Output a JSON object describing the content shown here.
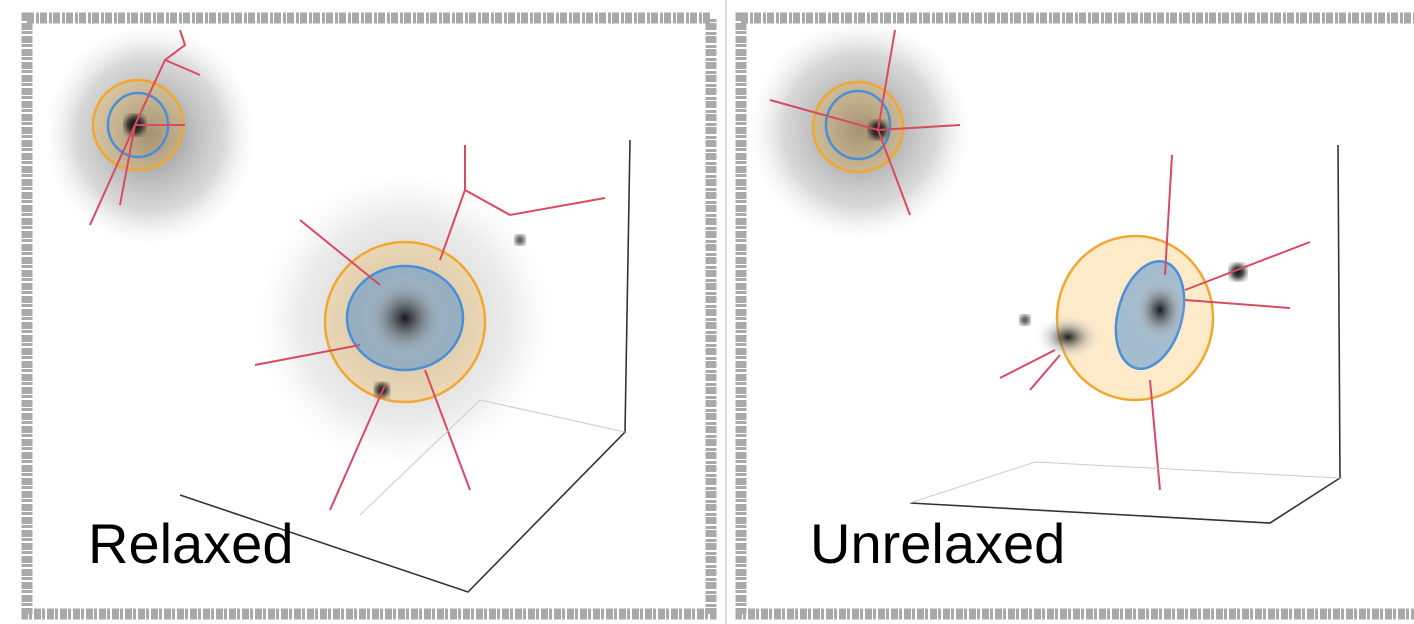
{
  "panels": [
    {
      "label": "Relaxed"
    },
    {
      "label": "Unrelaxed"
    }
  ]
}
